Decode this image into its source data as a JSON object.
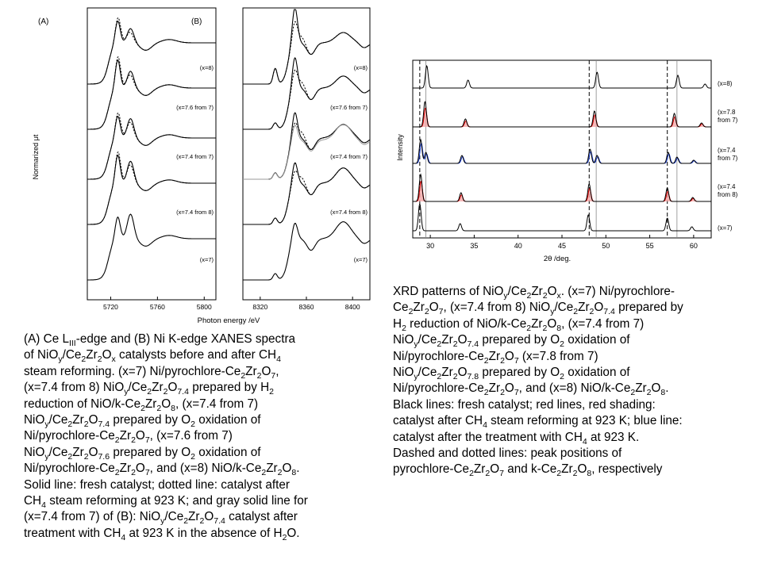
{
  "chart_data": [
    {
      "type": "line",
      "panel_label": "(A)",
      "ylabel": "Normarized μt",
      "xticks": [
        "5720",
        "5760",
        "5800"
      ],
      "xlim": [
        5700,
        5810
      ],
      "series_labels": [
        "(x=8)",
        "(x=7.6 from 7)",
        "(x=7.4 from 7)",
        "(x=7.4 from 8)",
        "(x=7)"
      ],
      "legend": {
        "solid": "fresh catalyst",
        "dotted": "after CH4 steam reforming at 923 K"
      }
    },
    {
      "type": "line",
      "panel_label": "(B)",
      "xlabel": "Photon energy /eV",
      "xticks": [
        "8320",
        "8360",
        "8400"
      ],
      "xlim": [
        8305,
        8415
      ],
      "series_labels": [
        "(x=8)",
        "(x=7.6 from 7)",
        "(x=7.4 from 7)",
        "(x=7.4 from 8)",
        "(x=7)"
      ]
    },
    {
      "type": "line",
      "ylabel": "Intensity",
      "xlabel": "2θ /deg.",
      "xticks": [
        "30",
        "35",
        "40",
        "45",
        "50",
        "55",
        "60"
      ],
      "xlim": [
        28,
        62
      ],
      "series_labels": [
        "(x=8)",
        "(x=7.8\nfrom 7)",
        "(x=7.4\nfrom 7)",
        "(x=7.4\nfrom 8)",
        "(x=7)"
      ],
      "reference_lines": {
        "dashed": [
          28.8,
          48.1,
          57.0
        ],
        "dotted": [
          29.5,
          48.9,
          58.1
        ]
      }
    }
  ],
  "captions": {
    "left": [
      "(A) Ce L<sub>III</sub>-edge and (B) Ni K-edge XANES spectra",
      "of NiO<sub>y</sub>/Ce<sub>2</sub>Zr<sub>2</sub>O<sub>x</sub> catalysts before and after CH<sub>4</sub>",
      "steam reforming.  (x=7) Ni/pyrochlore-Ce<sub>2</sub>Zr<sub>2</sub>O<sub>7</sub>,",
      "(x=7.4 from 8) NiO<sub>y</sub>/Ce<sub>2</sub>Zr<sub>2</sub>O<sub>7.4</sub> prepared by H<sub>2</sub>",
      "reduction of NiO/k-Ce<sub>2</sub>Zr<sub>2</sub>O<sub>8</sub>, (x=7.4 from 7)",
      "NiO<sub>y</sub>/Ce<sub>2</sub>Zr<sub>2</sub>O<sub>7.4</sub> prepared by O<sub>2</sub> oxidation of",
      "Ni/pyrochlore-Ce<sub>2</sub>Zr<sub>2</sub>O<sub>7</sub>, (x=7.6 from 7)",
      "NiO<sub>y</sub>/Ce<sub>2</sub>Zr<sub>2</sub>O<sub>7.6</sub> prepared by O<sub>2</sub> oxidation of",
      "Ni/pyrochlore-Ce<sub>2</sub>Zr<sub>2</sub>O<sub>7</sub>, and (x=8) NiO/k-Ce<sub>2</sub>Zr<sub>2</sub>O<sub>8</sub>.",
      "Solid line: fresh catalyst; dotted line: catalyst after",
      "CH<sub>4</sub> steam reforming at 923 K; and gray solid line for",
      "(x=7.4 from 7) of (B): NiO<sub>y</sub>/Ce<sub>2</sub>Zr<sub>2</sub>O<sub>7.4</sub> catalyst after",
      "treatment with CH<sub>4</sub> at 923 K in the absence of H<sub>2</sub>O."
    ],
    "right": [
      "XRD patterns of NiO<sub>y</sub>/Ce<sub>2</sub>Zr<sub>2</sub>O<sub>x</sub>.  (x=7) Ni/pyrochlore-",
      "Ce<sub>2</sub>Zr<sub>2</sub>O<sub>7</sub>, (x=7.4 from 8) NiO<sub>y</sub>/Ce<sub>2</sub>Zr<sub>2</sub>O<sub>7.4</sub> prepared by",
      "H<sub>2</sub> reduction of NiO/k-Ce<sub>2</sub>Zr<sub>2</sub>O<sub>8</sub>, (x=7.4 from 7)",
      "NiO<sub>y</sub>/Ce<sub>2</sub>Zr<sub>2</sub>O<sub>7.4</sub> prepared by O<sub>2</sub> oxidation of",
      "Ni/pyrochlore-Ce<sub>2</sub>Zr<sub>2</sub>O<sub>7</sub> (x=7.8 from 7)",
      "NiO<sub>y</sub>/Ce<sub>2</sub>Zr<sub>2</sub>O<sub>7.8</sub> prepared by O<sub>2</sub> oxidation of",
      "Ni/pyrochlore-Ce<sub>2</sub>Zr<sub>2</sub>O<sub>7</sub>, and (x=8) NiO/k-Ce<sub>2</sub>Zr<sub>2</sub>O<sub>8</sub>.",
      "Black lines: fresh catalyst; red lines, red shading:",
      "catalyst after CH<sub>4</sub> steam reforming at 923 K; blue line:",
      "catalyst after the treatment with CH<sub>4</sub> at 923 K.",
      "Dashed and dotted lines: peak positions of",
      "pyrochlore-Ce<sub>2</sub>Zr<sub>2</sub>O<sub>7</sub> and k-Ce<sub>2</sub>Zr<sub>2</sub>O<sub>8</sub>, respectively"
    ]
  }
}
